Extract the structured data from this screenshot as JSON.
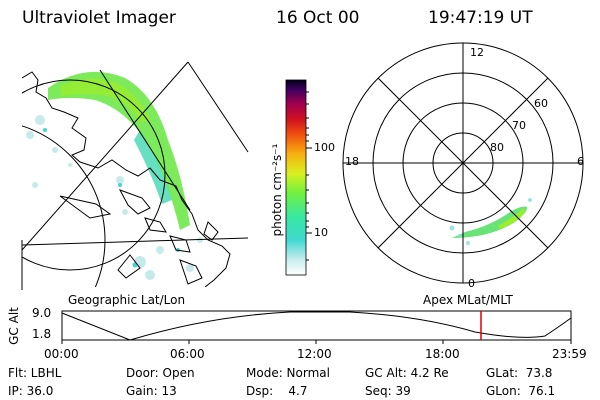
{
  "header": {
    "title": "Ultraviolet Imager",
    "date": "16 Oct 00",
    "time": "19:47:19 UT"
  },
  "colorbar": {
    "label": "photon cm⁻²s⁻¹",
    "ticks": [
      "100",
      "10"
    ]
  },
  "polar_plot": {
    "mlt_labels": [
      "12",
      "18",
      "6",
      "0"
    ],
    "mlat_labels": [
      "60",
      "70",
      "80"
    ]
  },
  "panel_labels": {
    "left": "Geographic Lat/Lon",
    "right": "Apex MLat/MLT"
  },
  "altitude_plot": {
    "ylabel": "GC Alt",
    "y_ticks": [
      "9.0",
      "1.8"
    ],
    "time_ticks": [
      "00:00",
      "06:00",
      "12:00",
      "18:00",
      "23:59"
    ],
    "current_time_marker_color": "#e00000"
  },
  "info": {
    "filter": "Flt: LBHL",
    "door": "Door: Open",
    "mode": "Mode: Normal",
    "gc_alt": "GC Alt: 4.2 Re",
    "glat": "GLat:  73.8",
    "ip": "IP: 36.0",
    "gain": "Gain: 13",
    "dsp": "Dsp:    4.7",
    "seq": "Seq: 39",
    "glon": "GLon:  76.1"
  }
}
